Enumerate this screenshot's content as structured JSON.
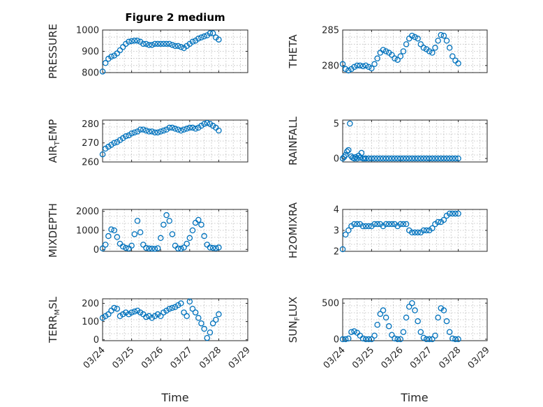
{
  "title": "Figure 2 medium",
  "xlabel": "Time",
  "x_tick_labels": [
    "03/24",
    "03/25",
    "03/26",
    "03/27",
    "03/28",
    "03/29"
  ],
  "chart_data": [
    {
      "type": "scatter",
      "ylabel": "PRESSURE",
      "ylim": [
        800,
        1000
      ],
      "yticks": [
        800,
        900,
        1000
      ],
      "xlim": [
        0,
        5
      ],
      "grid": true,
      "x": [
        0,
        0.1,
        0.2,
        0.3,
        0.4,
        0.5,
        0.6,
        0.7,
        0.8,
        0.9,
        1.0,
        1.1,
        1.2,
        1.3,
        1.4,
        1.5,
        1.6,
        1.7,
        1.8,
        1.9,
        2.0,
        2.1,
        2.2,
        2.3,
        2.4,
        2.5,
        2.6,
        2.7,
        2.8,
        2.9,
        3.0,
        3.1,
        3.2,
        3.3,
        3.4,
        3.5,
        3.6,
        3.7,
        3.8,
        3.9,
        4.0
      ],
      "y": [
        805,
        845,
        865,
        875,
        880,
        890,
        905,
        920,
        935,
        945,
        948,
        950,
        950,
        945,
        935,
        935,
        930,
        930,
        935,
        935,
        935,
        935,
        935,
        935,
        930,
        925,
        925,
        920,
        915,
        925,
        935,
        945,
        950,
        960,
        965,
        970,
        975,
        985,
        985,
        965,
        955
      ]
    },
    {
      "type": "scatter",
      "ylabel": "THETA",
      "ylim": [
        279,
        285
      ],
      "yticks": [
        280,
        285
      ],
      "xlim": [
        0,
        5
      ],
      "grid": true,
      "x": [
        0,
        0.1,
        0.2,
        0.3,
        0.4,
        0.5,
        0.6,
        0.7,
        0.8,
        0.9,
        1.0,
        1.1,
        1.2,
        1.3,
        1.4,
        1.5,
        1.6,
        1.7,
        1.8,
        1.9,
        2.0,
        2.1,
        2.2,
        2.3,
        2.4,
        2.5,
        2.6,
        2.7,
        2.8,
        2.9,
        3.0,
        3.1,
        3.2,
        3.3,
        3.4,
        3.5,
        3.6,
        3.7,
        3.8,
        3.9,
        4.0
      ],
      "y": [
        280.2,
        279.5,
        279.3,
        279.5,
        279.8,
        280.0,
        280.0,
        279.9,
        280.0,
        279.8,
        279.6,
        280.2,
        281.0,
        281.8,
        282.2,
        282.0,
        281.8,
        281.5,
        281.0,
        280.8,
        281.3,
        282.0,
        283.0,
        283.8,
        284.2,
        284.0,
        283.8,
        283.0,
        282.5,
        282.3,
        282.0,
        281.8,
        282.5,
        283.5,
        284.3,
        284.2,
        283.5,
        282.5,
        281.3,
        280.7,
        280.3
      ]
    },
    {
      "type": "scatter",
      "ylabel": "AIR_TEMP",
      "ylim": [
        260,
        282
      ],
      "yticks": [
        260,
        270,
        280
      ],
      "xlim": [
        0,
        5
      ],
      "grid": true,
      "x": [
        0,
        0.1,
        0.2,
        0.3,
        0.4,
        0.5,
        0.6,
        0.7,
        0.8,
        0.9,
        1.0,
        1.1,
        1.2,
        1.3,
        1.4,
        1.5,
        1.6,
        1.7,
        1.8,
        1.9,
        2.0,
        2.1,
        2.2,
        2.3,
        2.4,
        2.5,
        2.6,
        2.7,
        2.8,
        2.9,
        3.0,
        3.1,
        3.2,
        3.3,
        3.4,
        3.5,
        3.6,
        3.7,
        3.8,
        3.9,
        4.0
      ],
      "y": [
        264,
        267,
        268,
        269,
        270,
        270.5,
        271.5,
        272.5,
        273.5,
        274,
        275,
        275.5,
        276,
        277,
        277,
        276.5,
        276,
        276,
        275.5,
        275.5,
        276,
        276.5,
        277,
        278,
        278,
        277.5,
        277,
        276.5,
        277,
        277.5,
        278,
        278,
        277.5,
        278,
        279,
        280,
        280.5,
        280,
        279,
        278,
        276.5
      ]
    },
    {
      "type": "scatter",
      "ylabel": "RAINFALL",
      "ylim": [
        -0.5,
        5.5
      ],
      "yticks": [
        0,
        5
      ],
      "xlim": [
        0,
        5
      ],
      "grid": true,
      "x": [
        0,
        0.05,
        0.1,
        0.15,
        0.2,
        0.25,
        0.3,
        0.35,
        0.4,
        0.45,
        0.5,
        0.55,
        0.6,
        0.65,
        0.7,
        0.75,
        0.8,
        0.9,
        1.0,
        1.1,
        1.2,
        1.3,
        1.4,
        1.5,
        1.6,
        1.7,
        1.8,
        1.9,
        2.0,
        2.1,
        2.2,
        2.3,
        2.4,
        2.5,
        2.6,
        2.7,
        2.8,
        2.9,
        3.0,
        3.1,
        3.2,
        3.3,
        3.4,
        3.5,
        3.6,
        3.7,
        3.8,
        3.9,
        4.0
      ],
      "y": [
        0,
        0.2,
        0.5,
        1.0,
        1.2,
        5.0,
        0.3,
        0.1,
        0,
        0.2,
        0,
        0.4,
        0.1,
        0.8,
        0,
        0,
        0,
        0,
        0,
        0,
        0,
        0,
        0,
        0,
        0,
        0,
        0,
        0,
        0,
        0,
        0,
        0,
        0,
        0,
        0,
        0,
        0,
        0,
        0,
        0,
        0,
        0,
        0,
        0,
        0,
        0,
        0,
        0,
        0
      ]
    },
    {
      "type": "scatter",
      "ylabel": "MIXDEPTH",
      "ylim": [
        -100,
        2100
      ],
      "yticks": [
        0,
        1000,
        2000
      ],
      "xlim": [
        0,
        5
      ],
      "grid": true,
      "x": [
        0,
        0.1,
        0.2,
        0.3,
        0.4,
        0.5,
        0.6,
        0.7,
        0.8,
        0.9,
        1.0,
        1.1,
        1.2,
        1.3,
        1.4,
        1.5,
        1.6,
        1.7,
        1.8,
        1.9,
        2.0,
        2.1,
        2.2,
        2.3,
        2.4,
        2.5,
        2.6,
        2.7,
        2.8,
        2.9,
        3.0,
        3.1,
        3.2,
        3.3,
        3.4,
        3.5,
        3.6,
        3.7,
        3.8,
        3.9,
        4.0
      ],
      "y": [
        50,
        250,
        700,
        1050,
        1000,
        650,
        300,
        150,
        80,
        50,
        200,
        800,
        1500,
        900,
        250,
        80,
        50,
        40,
        30,
        60,
        600,
        1300,
        1800,
        1500,
        800,
        200,
        50,
        40,
        100,
        300,
        600,
        1000,
        1400,
        1550,
        1300,
        700,
        250,
        100,
        80,
        60,
        100
      ]
    },
    {
      "type": "scatter",
      "ylabel": "H2OMIXRA",
      "ylim": [
        2,
        4
      ],
      "yticks": [
        2,
        3,
        4
      ],
      "xlim": [
        0,
        5
      ],
      "grid": true,
      "x": [
        0,
        0.1,
        0.2,
        0.3,
        0.4,
        0.5,
        0.6,
        0.7,
        0.8,
        0.9,
        1.0,
        1.1,
        1.2,
        1.3,
        1.4,
        1.5,
        1.6,
        1.7,
        1.8,
        1.9,
        2.0,
        2.1,
        2.2,
        2.3,
        2.4,
        2.5,
        2.6,
        2.7,
        2.8,
        2.9,
        3.0,
        3.1,
        3.2,
        3.3,
        3.4,
        3.5,
        3.6,
        3.7,
        3.8,
        3.9,
        4.0
      ],
      "y": [
        2.1,
        2.8,
        3.0,
        3.2,
        3.3,
        3.3,
        3.3,
        3.2,
        3.2,
        3.2,
        3.2,
        3.3,
        3.3,
        3.3,
        3.2,
        3.3,
        3.3,
        3.3,
        3.3,
        3.2,
        3.3,
        3.3,
        3.3,
        3.0,
        2.9,
        2.9,
        2.9,
        2.9,
        3.0,
        3.0,
        3.0,
        3.1,
        3.3,
        3.4,
        3.4,
        3.5,
        3.7,
        3.8,
        3.8,
        3.8,
        3.8
      ]
    },
    {
      "type": "scatter",
      "ylabel": "TERR_MSL",
      "ylim": [
        -5,
        225
      ],
      "yticks": [
        0,
        100,
        200
      ],
      "xlim": [
        0,
        5
      ],
      "grid": true,
      "x": [
        0,
        0.1,
        0.2,
        0.3,
        0.4,
        0.5,
        0.6,
        0.7,
        0.8,
        0.9,
        1.0,
        1.1,
        1.2,
        1.3,
        1.4,
        1.5,
        1.6,
        1.7,
        1.8,
        1.9,
        2.0,
        2.1,
        2.2,
        2.3,
        2.4,
        2.5,
        2.6,
        2.7,
        2.8,
        2.9,
        3.0,
        3.1,
        3.2,
        3.3,
        3.4,
        3.5,
        3.6,
        3.7,
        3.8,
        3.9,
        4.0
      ],
      "y": [
        120,
        130,
        140,
        160,
        175,
        170,
        130,
        140,
        150,
        140,
        150,
        155,
        160,
        150,
        140,
        125,
        130,
        120,
        130,
        140,
        130,
        150,
        160,
        170,
        175,
        180,
        190,
        200,
        150,
        130,
        210,
        170,
        150,
        120,
        90,
        60,
        10,
        40,
        90,
        110,
        140
      ]
    },
    {
      "type": "scatter",
      "ylabel": "SUN_FLUX",
      "ylim": [
        -20,
        560
      ],
      "yticks": [
        0,
        500
      ],
      "xlim": [
        0,
        5
      ],
      "grid": true,
      "x": [
        0,
        0.1,
        0.2,
        0.3,
        0.4,
        0.5,
        0.6,
        0.7,
        0.8,
        0.9,
        1.0,
        1.1,
        1.2,
        1.3,
        1.4,
        1.5,
        1.6,
        1.7,
        1.8,
        1.9,
        2.0,
        2.1,
        2.2,
        2.3,
        2.4,
        2.5,
        2.6,
        2.7,
        2.8,
        2.9,
        3.0,
        3.1,
        3.2,
        3.3,
        3.4,
        3.5,
        3.6,
        3.7,
        3.8,
        3.9,
        4.0
      ],
      "y": [
        0,
        0,
        10,
        100,
        110,
        90,
        50,
        10,
        0,
        0,
        0,
        50,
        200,
        350,
        400,
        300,
        180,
        60,
        10,
        0,
        0,
        100,
        300,
        450,
        500,
        400,
        250,
        100,
        20,
        0,
        0,
        0,
        50,
        300,
        430,
        400,
        250,
        100,
        10,
        0,
        0
      ]
    }
  ]
}
